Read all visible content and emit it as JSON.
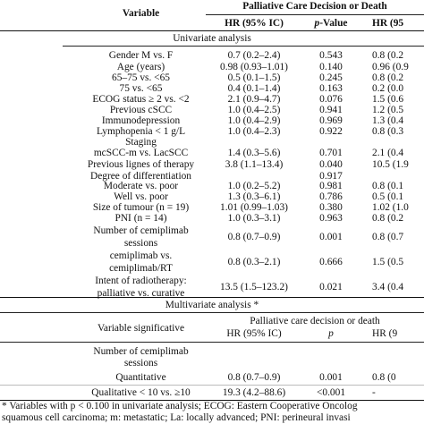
{
  "header": {
    "variable": "Variable",
    "group": "Palliative Care Decision or Death",
    "hr_col": "HR (95% IC)",
    "p_col": "p-Value",
    "hr_col2": "HR (95"
  },
  "univariate_title": "Univariate analysis",
  "univariate_rows": [
    {
      "v": "Gender M vs. F",
      "hr": "0.7 (0.2–2.4)",
      "p": "0.543",
      "hr2": "0.8 (0.2"
    },
    {
      "v": "Age (years)",
      "hr": "0.98 (0.93–1.01)",
      "p": "0.140",
      "hr2": "0.96 (0.9"
    },
    {
      "v": "65–75 vs. <65",
      "hr": "0.5 (0.1–1.5)",
      "p": "0.245",
      "hr2": "0.8 (0.2"
    },
    {
      "v": "75 vs. <65",
      "hr": "0.4 (0.1–1.4)",
      "p": "0.163",
      "hr2": "0.2 (0.0"
    },
    {
      "v": "ECOG status ≥ 2 vs. <2",
      "hr": "2.1 (0.9–4.7)",
      "p": "0.076",
      "hr2": "1.5 (0.6"
    },
    {
      "v": "Previous cSCC",
      "hr": "1.0 (0.4–2.5)",
      "p": "0.941",
      "hr2": "1.2 (0.5"
    },
    {
      "v": "Immunodepression",
      "hr": "1.0 (0.4–2.9)",
      "p": "0.969",
      "hr2": "1.3 (0.4"
    },
    {
      "v": "Lymphopenia < 1 g/L",
      "hr": "1.0 (0.4–2.3)",
      "p": "0.922",
      "hr2": "0.8 (0.3"
    },
    {
      "v": "Staging",
      "hr": "",
      "p": "",
      "hr2": ""
    },
    {
      "v": "mcSCC-m vs. LacSCC",
      "hr": "1.4 (0.3–5.6)",
      "p": "0.701",
      "hr2": "2.1 (0.4"
    },
    {
      "v": "Previous lignes of therapy",
      "hr": "3.8 (1.1–13.4)",
      "p": "0.040",
      "hr2": "10.5 (1.9"
    },
    {
      "v": "Degree of differentiation",
      "hr": "",
      "p": "0.917",
      "hr2": ""
    },
    {
      "v": "Moderate vs. poor",
      "hr": "1.0 (0.2–5.2)",
      "p": "0.981",
      "hr2": "0.8 (0.1"
    },
    {
      "v": "Well vs. poor",
      "hr": "1.3 (0.3–6.1)",
      "p": "0.786",
      "hr2": "0.5 (0.1"
    },
    {
      "v": "Size of tumour (n = 19)",
      "hr": "1.01 (0.99–1.03)",
      "p": "0.380",
      "hr2": "1.02 (1.0"
    },
    {
      "v": "PNI (n = 14)",
      "hr": "1.0 (0.3–3.1)",
      "p": "0.963",
      "hr2": "0.8 (0.2"
    },
    {
      "v": "Number of cemiplimab",
      "v2": "sessions",
      "hr": "0.8 (0.7–0.9)",
      "p": "0.001",
      "hr2": "0.8 (0.7"
    },
    {
      "v": "cemiplimab vs.",
      "v2": "cemiplimab/RT",
      "hr": "0.8 (0.3–2.1)",
      "p": "0.666",
      "hr2": "1.5 (0.5"
    },
    {
      "v": "Intent of radiotherapy:",
      "v2": "palliative vs. curative",
      "hr": "13.5 (1.5–123.2)",
      "p": "0.021",
      "hr2": "3.4 (0.4"
    }
  ],
  "multivariate_title": "Multivariate analysis *",
  "multi_header": {
    "variable": "Variable significative",
    "group": "Palliative care decision or death",
    "hr_col": "HR (95% IC)",
    "p_col": "p",
    "hr_col2": "HR (9"
  },
  "multi_rows": [
    {
      "v": "Number of cemiplimab",
      "v2": "sessions",
      "hr": "",
      "p": "",
      "hr2": ""
    },
    {
      "v": "Quantitative",
      "hr": "0.8 (0.7–0.9)",
      "p": "0.001",
      "hr2": "0.8 (0"
    },
    {
      "v": "Qualitative < 10 vs. ≥10",
      "hr": "19.3 (4.2–88.6)",
      "p": "<0.001",
      "hr2": "-"
    }
  ],
  "footnotes": [
    "* Variables with p < 0.100 in univariate analysis; ECOG: Eastern Cooperative Oncolog",
    "squamous cell carcinoma; m: metastatic; La: locally advanced; PNI: perineural invasi"
  ]
}
